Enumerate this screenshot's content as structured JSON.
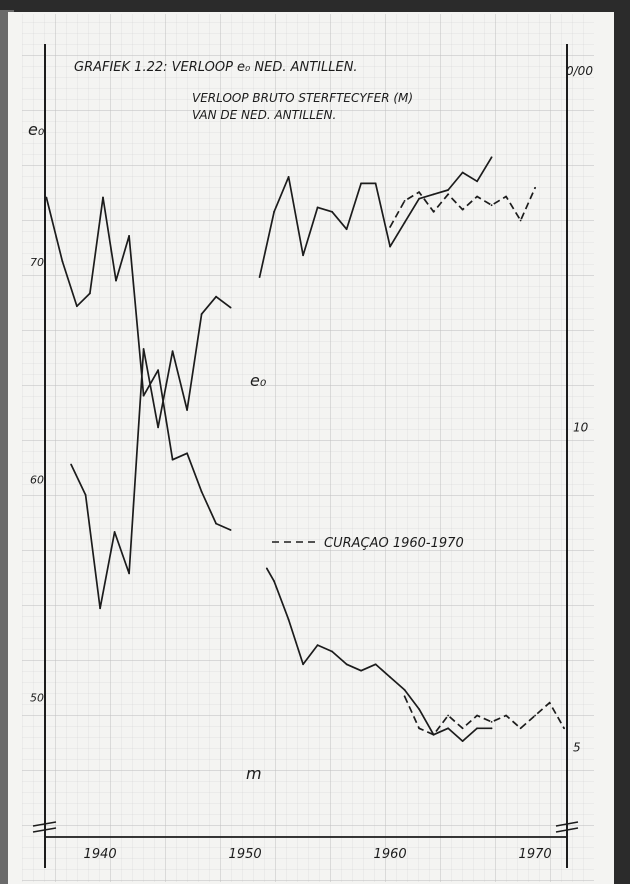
{
  "chart_data": {
    "type": "line",
    "title": "GRAFIEK 1.22:  VERLOOP e₀ NED. ANTILLEN.",
    "subtitle_line1": "VERLOOP BRUTO STERFTECYFER (M)",
    "subtitle_line2": "VAN DE NED. ANTILLEN.",
    "ylabel_left": "e₀",
    "ylabel_right": "0/00",
    "legend_text": "CURAÇAO 1960-1970",
    "label_e0": "e₀",
    "label_m": "m",
    "x_ticks": [
      {
        "year": 1940,
        "label": "1940"
      },
      {
        "year": 1950,
        "label": "1950"
      },
      {
        "year": 1960,
        "label": "1960"
      },
      {
        "year": 1970,
        "label": "1970"
      }
    ],
    "y_left_ticks": [
      {
        "value": 70,
        "label": "70"
      },
      {
        "value": 60,
        "label": "60"
      },
      {
        "value": 50,
        "label": "50"
      }
    ],
    "y_right_ticks": [
      {
        "value": 10,
        "label": "10"
      },
      {
        "value": 5,
        "label": "5"
      }
    ],
    "xlim": [
      1936.2,
      1972.2
    ],
    "ylim_left": [
      43.6,
      80
    ],
    "ylim_right": [
      3.6,
      16.0
    ],
    "series": [
      {
        "key": "e0_antillen",
        "axis": "left",
        "style": "solid",
        "points": [
          [
            1938,
            60.7
          ],
          [
            1939,
            59.3
          ],
          [
            1940,
            54.1
          ],
          [
            1941,
            57.6
          ],
          [
            1942,
            55.7
          ],
          [
            1943,
            66.0
          ],
          [
            1944,
            62.4
          ],
          [
            1945,
            65.9
          ],
          [
            1946,
            63.2
          ],
          [
            1947,
            67.6
          ],
          [
            1948,
            68.4
          ],
          [
            1949,
            67.9
          ]
        ]
      },
      {
        "key": "e0_antillen_late",
        "axis": "left",
        "style": "solid",
        "points": [
          [
            1951,
            69.3
          ],
          [
            1952,
            72.3
          ],
          [
            1953,
            73.9
          ],
          [
            1954,
            70.3
          ],
          [
            1955,
            72.5
          ],
          [
            1956,
            72.3
          ],
          [
            1957,
            71.5
          ],
          [
            1958,
            73.6
          ],
          [
            1959,
            73.6
          ],
          [
            1960,
            70.7
          ],
          [
            1961,
            71.8
          ],
          [
            1962,
            72.9
          ],
          [
            1963,
            73.1
          ],
          [
            1964,
            73.3
          ],
          [
            1965,
            74.1
          ],
          [
            1966,
            73.7
          ],
          [
            1967,
            74.8
          ]
        ]
      },
      {
        "key": "e0_curacao",
        "axis": "left",
        "style": "dashed",
        "points": [
          [
            1960,
            71.6
          ],
          [
            1961,
            72.8
          ],
          [
            1962,
            73.2
          ],
          [
            1963,
            72.3
          ],
          [
            1964,
            73.1
          ],
          [
            1965,
            72.4
          ],
          [
            1966,
            73.0
          ],
          [
            1967,
            72.6
          ],
          [
            1968,
            73.0
          ],
          [
            1969,
            71.9
          ],
          [
            1970,
            73.4
          ]
        ]
      },
      {
        "key": "m_antillen",
        "axis": "right",
        "style": "solid",
        "points": [
          [
            1936.3,
            13.6
          ],
          [
            1937.4,
            12.6
          ],
          [
            1938.4,
            11.9
          ],
          [
            1939.3,
            12.1
          ],
          [
            1940.2,
            13.6
          ],
          [
            1941.1,
            12.3
          ],
          [
            1942,
            13.0
          ],
          [
            1943,
            10.5
          ],
          [
            1944,
            10.9
          ],
          [
            1945,
            9.5
          ],
          [
            1946,
            9.6
          ],
          [
            1947,
            9.0
          ],
          [
            1948,
            8.5
          ],
          [
            1949,
            8.4
          ]
        ]
      },
      {
        "key": "m_antillen_late",
        "axis": "right",
        "style": "solid",
        "points": [
          [
            1951.5,
            7.8
          ],
          [
            1952,
            7.6
          ],
          [
            1953,
            7.0
          ],
          [
            1954,
            6.3
          ],
          [
            1955,
            6.6
          ],
          [
            1956,
            6.5
          ],
          [
            1957,
            6.3
          ],
          [
            1958,
            6.2
          ],
          [
            1959,
            6.3
          ],
          [
            1960,
            6.1
          ],
          [
            1961,
            5.9
          ],
          [
            1962,
            5.6
          ],
          [
            1963,
            5.2
          ],
          [
            1964,
            5.3
          ],
          [
            1965,
            5.1
          ],
          [
            1966,
            5.3
          ],
          [
            1967,
            5.3
          ]
        ]
      },
      {
        "key": "m_curacao",
        "axis": "right",
        "style": "dashed",
        "points": [
          [
            1961,
            5.8
          ],
          [
            1962,
            5.3
          ],
          [
            1963,
            5.2
          ],
          [
            1964,
            5.5
          ],
          [
            1965,
            5.3
          ],
          [
            1966,
            5.5
          ],
          [
            1967,
            5.4
          ],
          [
            1968,
            5.5
          ],
          [
            1969,
            5.3
          ],
          [
            1970,
            5.5
          ],
          [
            1971,
            5.7
          ],
          [
            1972,
            5.3
          ]
        ]
      }
    ]
  }
}
